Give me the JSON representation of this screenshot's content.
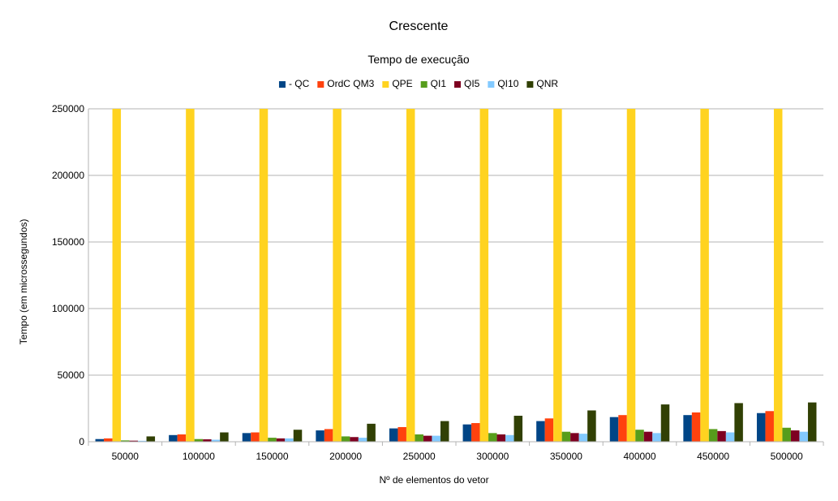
{
  "chart_data": {
    "type": "bar",
    "title": "Crescente",
    "subtitle": "Tempo de execução",
    "xlabel": "Nº de elementos do vetor",
    "ylabel": "Tempo (em microssegundos)",
    "ylim": [
      0,
      250000
    ],
    "yticks": [
      "0",
      "50000",
      "100000",
      "150000",
      "200000",
      "250000"
    ],
    "grid": true,
    "legend_position": "top",
    "categories": [
      "50000",
      "100000",
      "150000",
      "200000",
      "250000",
      "300000",
      "350000",
      "400000",
      "450000",
      "500000"
    ],
    "series": [
      {
        "name": "- QC",
        "color": "#004586",
        "values": [
          2000,
          5000,
          6500,
          8500,
          10000,
          13000,
          15500,
          18500,
          20000,
          21500
        ]
      },
      {
        "name": "OrdC QM3",
        "color": "#ff420e",
        "values": [
          2500,
          5500,
          7000,
          9500,
          11000,
          14000,
          17500,
          20000,
          22000,
          23000
        ]
      },
      {
        "name": "QPE",
        "color": "#ffd320",
        "values": [
          250000,
          250000,
          250000,
          250000,
          250000,
          250000,
          250000,
          250000,
          250000,
          250000
        ]
      },
      {
        "name": "QI1",
        "color": "#579d1c",
        "values": [
          1000,
          2000,
          3000,
          4000,
          5500,
          6500,
          7500,
          9000,
          9500,
          10500
        ]
      },
      {
        "name": "QI5",
        "color": "#7e0021",
        "values": [
          800,
          1800,
          2500,
          3500,
          4500,
          5500,
          6500,
          7500,
          8000,
          8500
        ]
      },
      {
        "name": "QI10",
        "color": "#83caff",
        "values": [
          700,
          1500,
          2500,
          3000,
          4500,
          5000,
          6000,
          6500,
          7000,
          7500
        ]
      },
      {
        "name": "QNR",
        "color": "#314004",
        "values": [
          4000,
          7000,
          9000,
          13500,
          15500,
          19500,
          23500,
          28000,
          29000,
          29500
        ]
      }
    ]
  }
}
